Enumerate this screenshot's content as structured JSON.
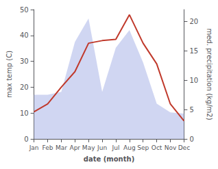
{
  "chart_data": {
    "type": "line",
    "categories": [
      "Jan",
      "Feb",
      "Mar",
      "Apr",
      "May",
      "Jun",
      "Jul",
      "Aug",
      "Sep",
      "Oct",
      "Nov",
      "Dec"
    ],
    "xlabel": "date (month)",
    "ylabel": "max temp (C)",
    "y2label": "med. precipitation (kg/m2)",
    "series": [
      {
        "type": "area",
        "color": "#aab4e8",
        "axis": "y2",
        "values": [
          7.5,
          7.5,
          8.0,
          16.5,
          20.5,
          8.0,
          15.5,
          18.5,
          13.0,
          6.0,
          4.5,
          4.3
        ]
      },
      {
        "type": "line",
        "color": "#c0392b",
        "values": [
          10.5,
          13.5,
          20.0,
          26.0,
          37.0,
          38.0,
          38.5,
          48.0,
          37.0,
          29.0,
          13.5,
          7.0
        ]
      }
    ],
    "ylim": [
      0,
      50
    ],
    "yticks": [
      0,
      10,
      20,
      30,
      40,
      50
    ],
    "y2lim": [
      0,
      22
    ],
    "y2ticks": [
      0,
      5,
      10,
      15,
      20
    ],
    "grid": false
  }
}
